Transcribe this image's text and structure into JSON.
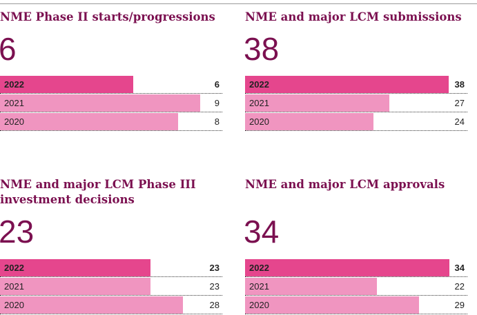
{
  "colors": {
    "current_bar": "#e5468d",
    "previous_bar": "#f095c0",
    "title": "#7b1050"
  },
  "chart_data": [
    {
      "type": "bar",
      "title": "NME Phase II starts/progressions",
      "headline": "6",
      "categories": [
        "2022",
        "2021",
        "2020"
      ],
      "values": [
        6,
        9,
        8
      ],
      "value_labels": [
        "6",
        "9",
        "8"
      ],
      "xlim": [
        0,
        10
      ]
    },
    {
      "type": "bar",
      "title": "NME and major LCM submissions",
      "headline": "38",
      "categories": [
        "2022",
        "2021",
        "2020"
      ],
      "values": [
        38,
        27,
        24
      ],
      "value_labels": [
        "38",
        "27",
        "24"
      ],
      "xlim": [
        0,
        41.5
      ]
    },
    {
      "type": "bar",
      "title": "NME and major LCM Phase III\ninvestment decisions",
      "headline": "23",
      "categories": [
        "2022",
        "2021",
        "2020"
      ],
      "values": [
        23,
        23,
        28
      ],
      "value_labels": [
        "23",
        "23",
        "28"
      ],
      "xlim": [
        0,
        34
      ]
    },
    {
      "type": "bar",
      "title": "NME and major LCM approvals",
      "headline": "34",
      "categories": [
        "2022",
        "2021",
        "2020"
      ],
      "values": [
        34,
        22,
        29
      ],
      "value_labels": [
        "34",
        "22",
        "29"
      ],
      "xlim": [
        0,
        37
      ]
    }
  ]
}
